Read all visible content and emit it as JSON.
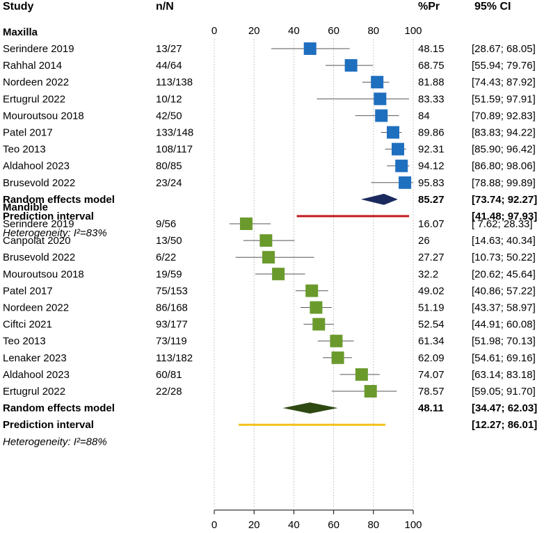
{
  "headers": {
    "study": "Study",
    "n": "n/N",
    "pr": "%Pr",
    "ci": "95% CI"
  },
  "axis": {
    "ticks": [
      0,
      20,
      40,
      60,
      80,
      100
    ],
    "xlim": [
      0,
      100
    ]
  },
  "colors": {
    "maxilla_box": "#1f6fbf",
    "maxilla_diamond": "#1b2a5e",
    "maxilla_pi": "#c0181c",
    "mandible_box": "#6a9a2c",
    "mandible_diamond": "#2e4a12",
    "mandible_pi": "#f2c21a",
    "ci_line": "#555555"
  },
  "chart_data": {
    "type": "forest",
    "groups": [
      {
        "label": "Maxilla",
        "studies": [
          {
            "name": "Serindere 2019",
            "nN": "13/27",
            "pr": 48.15,
            "ci_text": "[28.67; 68.05]",
            "lo": 28.67,
            "hi": 68.05
          },
          {
            "name": "Rahhal 2014",
            "nN": "44/64",
            "pr": 68.75,
            "ci_text": "[55.94; 79.76]",
            "lo": 55.94,
            "hi": 79.76
          },
          {
            "name": "Nordeen 2022",
            "nN": "113/138",
            "pr": 81.88,
            "ci_text": "[74.43; 87.92]",
            "lo": 74.43,
            "hi": 87.92
          },
          {
            "name": "Ertugrul 2022",
            "nN": "10/12",
            "pr": 83.33,
            "ci_text": "[51.59; 97.91]",
            "lo": 51.59,
            "hi": 97.91
          },
          {
            "name": "Mouroutsou 2018",
            "nN": "42/50",
            "pr": 84.0,
            "ci_text": "[70.89; 92.83]",
            "lo": 70.89,
            "hi": 92.83
          },
          {
            "name": "Patel 2017",
            "nN": "133/148",
            "pr": 89.86,
            "ci_text": "[83.83; 94.22]",
            "lo": 83.83,
            "hi": 94.22
          },
          {
            "name": "Teo 2013",
            "nN": "108/117",
            "pr": 92.31,
            "ci_text": "[85.90; 96.42]",
            "lo": 85.9,
            "hi": 96.42
          },
          {
            "name": "Aldahool 2023",
            "nN": "80/85",
            "pr": 94.12,
            "ci_text": "[86.80; 98.06]",
            "lo": 86.8,
            "hi": 98.06
          },
          {
            "name": "Brusevold 2022",
            "nN": "23/24",
            "pr": 95.83,
            "ci_text": "[78.88; 99.89]",
            "lo": 78.88,
            "hi": 99.89
          }
        ],
        "random_effects": {
          "label": "Random effects model",
          "pr": 85.27,
          "ci_text": "[73.74; 92.27]",
          "lo": 73.74,
          "hi": 92.27
        },
        "prediction": {
          "label": "Prediction interval",
          "ci_text": "[41.48; 97.93]",
          "lo": 41.48,
          "hi": 97.93
        },
        "heterogeneity": {
          "prefix": "Heterogeneity: ",
          "value": "I²=83%"
        }
      },
      {
        "label": "Mandible",
        "studies": [
          {
            "name": "Serindere 2019",
            "nN": "9/56",
            "pr": 16.07,
            "ci_text": "[ 7.62; 28.33]",
            "lo": 7.62,
            "hi": 28.33
          },
          {
            "name": "Canpolat 2020",
            "nN": "13/50",
            "pr": 26.0,
            "ci_text": "[14.63; 40.34]",
            "lo": 14.63,
            "hi": 40.34
          },
          {
            "name": "Brusevold 2022",
            "nN": "6/22",
            "pr": 27.27,
            "ci_text": "[10.73; 50.22]",
            "lo": 10.73,
            "hi": 50.22
          },
          {
            "name": "Mouroutsou 2018",
            "nN": "19/59",
            "pr": 32.2,
            "ci_text": "[20.62; 45.64]",
            "lo": 20.62,
            "hi": 45.64
          },
          {
            "name": "Patel 2017",
            "nN": "75/153",
            "pr": 49.02,
            "ci_text": "[40.86; 57.22]",
            "lo": 40.86,
            "hi": 57.22
          },
          {
            "name": "Nordeen 2022",
            "nN": "86/168",
            "pr": 51.19,
            "ci_text": "[43.37; 58.97]",
            "lo": 43.37,
            "hi": 58.97
          },
          {
            "name": "Ciftci 2021",
            "nN": "93/177",
            "pr": 52.54,
            "ci_text": "[44.91; 60.08]",
            "lo": 44.91,
            "hi": 60.08
          },
          {
            "name": "Teo 2013",
            "nN": "73/119",
            "pr": 61.34,
            "ci_text": "[51.98; 70.13]",
            "lo": 51.98,
            "hi": 70.13
          },
          {
            "name": "Lenaker 2023",
            "nN": "113/182",
            "pr": 62.09,
            "ci_text": "[54.61; 69.16]",
            "lo": 54.61,
            "hi": 69.16
          },
          {
            "name": "Aldahool 2023",
            "nN": "60/81",
            "pr": 74.07,
            "ci_text": "[63.14; 83.18]",
            "lo": 63.14,
            "hi": 83.18
          },
          {
            "name": "Ertugrul 2022",
            "nN": "22/28",
            "pr": 78.57,
            "ci_text": "[59.05; 91.70]",
            "lo": 59.05,
            "hi": 91.7
          }
        ],
        "random_effects": {
          "label": "Random effects model",
          "pr": 48.11,
          "ci_text": "[34.47; 62.03]",
          "lo": 34.47,
          "hi": 62.03
        },
        "prediction": {
          "label": "Prediction interval",
          "ci_text": "[12.27; 86.01]",
          "lo": 12.27,
          "hi": 86.01
        },
        "heterogeneity": {
          "prefix": "Heterogeneity: ",
          "value": "I²=88%"
        }
      }
    ]
  }
}
